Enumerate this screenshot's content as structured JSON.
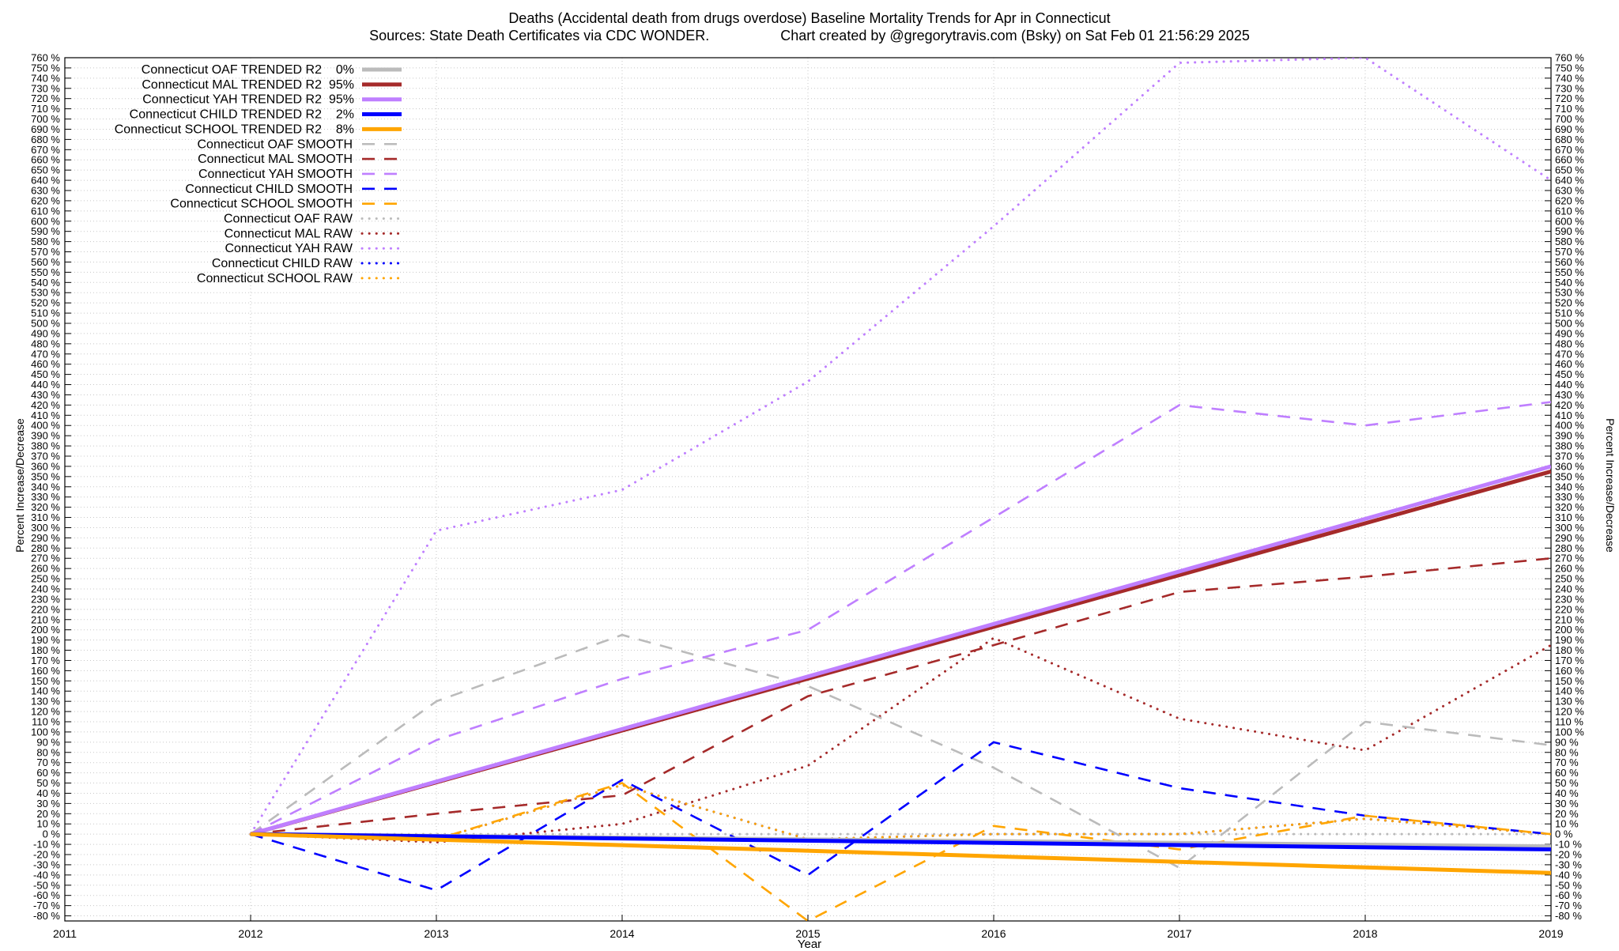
{
  "title_line1": "Deaths (Accidental death from drugs overdose)  Baseline Mortality Trends for Apr in Connecticut",
  "title_line2a": "Sources: State Death Certificates via CDC WONDER.",
  "title_line2b": "Chart created by @gregorytravis.com (Bsky) on Sat Feb 01 21:56:29 2025",
  "chart_data": {
    "type": "line",
    "xlabel": "Year",
    "ylabel": "Percent Increase/Decrease",
    "xlim": [
      2011,
      2019
    ],
    "ylim": [
      -85,
      760
    ],
    "x_ticks": [
      2011,
      2012,
      2013,
      2014,
      2015,
      2016,
      2017,
      2018,
      2019
    ],
    "y_tick_step": 10,
    "y_tick_suffix": " %",
    "grid": true,
    "legend_position": "top-left",
    "series": [
      {
        "name": "Connecticut OAF TRENDED R2",
        "r2": "0%",
        "style": "solid",
        "color": "#bbbbbb",
        "x": [
          2012,
          2019
        ],
        "y": [
          0,
          -12
        ]
      },
      {
        "name": "Connecticut MAL TRENDED R2",
        "r2": "95%",
        "style": "solid",
        "color": "#a52a2a",
        "x": [
          2012,
          2019
        ],
        "y": [
          0,
          355
        ]
      },
      {
        "name": "Connecticut YAH TRENDED R2",
        "r2": "95%",
        "style": "solid",
        "color": "#bf7fff",
        "x": [
          2012,
          2019
        ],
        "y": [
          0,
          360
        ]
      },
      {
        "name": "Connecticut CHILD TRENDED R2",
        "r2": "2%",
        "style": "solid",
        "color": "#0000ff",
        "x": [
          2012,
          2019
        ],
        "y": [
          0,
          -15
        ]
      },
      {
        "name": "Connecticut SCHOOL TRENDED R2",
        "r2": "8%",
        "style": "solid",
        "color": "#ffa500",
        "x": [
          2012,
          2019
        ],
        "y": [
          0,
          -38
        ]
      },
      {
        "name": "Connecticut OAF SMOOTH",
        "style": "dashed",
        "color": "#bbbbbb",
        "x": [
          2012,
          2013,
          2014,
          2015,
          2016,
          2017,
          2018,
          2019
        ],
        "y": [
          0,
          130,
          195,
          145,
          65,
          -33,
          110,
          87
        ]
      },
      {
        "name": "Connecticut MAL SMOOTH",
        "style": "dashed",
        "color": "#a52a2a",
        "x": [
          2012,
          2013,
          2014,
          2015,
          2016,
          2017,
          2018,
          2019
        ],
        "y": [
          0,
          20,
          38,
          135,
          185,
          237,
          252,
          270
        ]
      },
      {
        "name": "Connecticut YAH SMOOTH",
        "style": "dashed",
        "color": "#bf7fff",
        "x": [
          2012,
          2013,
          2014,
          2015,
          2016,
          2017,
          2018,
          2019
        ],
        "y": [
          0,
          92,
          152,
          200,
          310,
          420,
          400,
          423
        ]
      },
      {
        "name": "Connecticut CHILD SMOOTH",
        "style": "dashed",
        "color": "#0000ff",
        "x": [
          2012,
          2013,
          2014,
          2015,
          2016,
          2017,
          2018,
          2019
        ],
        "y": [
          0,
          -55,
          53,
          -40,
          90,
          45,
          18,
          0
        ]
      },
      {
        "name": "Connecticut SCHOOL SMOOTH",
        "style": "dashed",
        "color": "#ffa500",
        "x": [
          2012,
          2013,
          2014,
          2015,
          2016,
          2017,
          2018,
          2019
        ],
        "y": [
          0,
          -5,
          50,
          -85,
          8,
          -15,
          18,
          0
        ]
      },
      {
        "name": "Connecticut OAF RAW",
        "style": "dotted",
        "color": "#bbbbbb",
        "x": [
          2012,
          2013,
          2014,
          2015,
          2016,
          2017,
          2018,
          2019
        ],
        "y": [
          0,
          0,
          0,
          0,
          0,
          0,
          0,
          0
        ]
      },
      {
        "name": "Connecticut MAL RAW",
        "style": "dotted",
        "color": "#a52a2a",
        "x": [
          2012,
          2013,
          2014,
          2015,
          2016,
          2017,
          2018,
          2019
        ],
        "y": [
          0,
          -8,
          10,
          67,
          192,
          113,
          82,
          185
        ]
      },
      {
        "name": "Connecticut YAH RAW",
        "style": "dotted",
        "color": "#bf7fff",
        "x": [
          2012,
          2013,
          2014,
          2015,
          2016,
          2017,
          2018,
          2019
        ],
        "y": [
          0,
          297,
          337,
          443,
          595,
          755,
          760,
          640
        ]
      },
      {
        "name": "Connecticut CHILD RAW",
        "style": "dotted",
        "color": "#0000ff",
        "x": [
          2012,
          2013,
          2014,
          2015,
          2016,
          2017,
          2018,
          2019
        ],
        "y": [
          0,
          -5,
          48,
          -5,
          0,
          0,
          15,
          0
        ]
      },
      {
        "name": "Connecticut SCHOOL RAW",
        "style": "dotted",
        "color": "#ffa500",
        "x": [
          2012,
          2013,
          2014,
          2015,
          2016,
          2017,
          2018,
          2019
        ],
        "y": [
          0,
          -5,
          48,
          -5,
          0,
          0,
          15,
          0
        ]
      }
    ]
  }
}
